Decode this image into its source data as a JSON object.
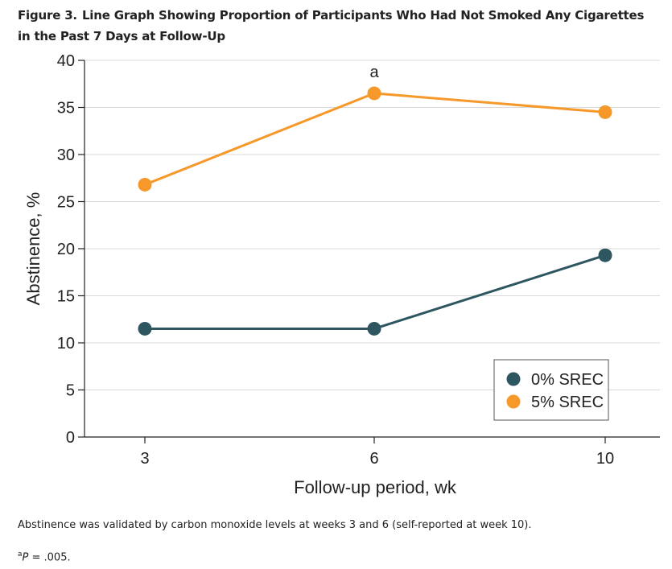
{
  "figure": {
    "label": "Figure 3.",
    "title": "Line Graph Showing Proportion of Participants Who Had Not Smoked Any Cigarettes in the Past 7 Days at Follow-Up"
  },
  "chart_data": {
    "type": "line",
    "xlabel": "Follow-up period, wk",
    "ylabel": "Abstinence, %",
    "x": [
      3,
      6,
      10
    ],
    "x_ticks": [
      "3",
      "6",
      "10"
    ],
    "ylim": [
      0,
      40
    ],
    "y_ticks": [
      "0",
      "5",
      "10",
      "15",
      "20",
      "25",
      "30",
      "35",
      "40"
    ],
    "grid": "horizontal",
    "legend_position": "bottom-right",
    "series": [
      {
        "name": "0% SREC",
        "values": [
          11.5,
          11.5,
          19.3
        ],
        "color": "#2e5661"
      },
      {
        "name": "5% SREC",
        "values": [
          26.8,
          36.5,
          34.5
        ],
        "color": "#f7982a"
      }
    ],
    "annotations": [
      {
        "text": "a",
        "x": 6,
        "series": "5% SREC"
      }
    ]
  },
  "footnotes": {
    "note1": "Abstinence was validated by carbon monoxide levels at weeks 3 and 6 (self-reported at week 10).",
    "note2_marker": "a",
    "note2_italic": "P",
    "note2_rest": " = .005."
  }
}
